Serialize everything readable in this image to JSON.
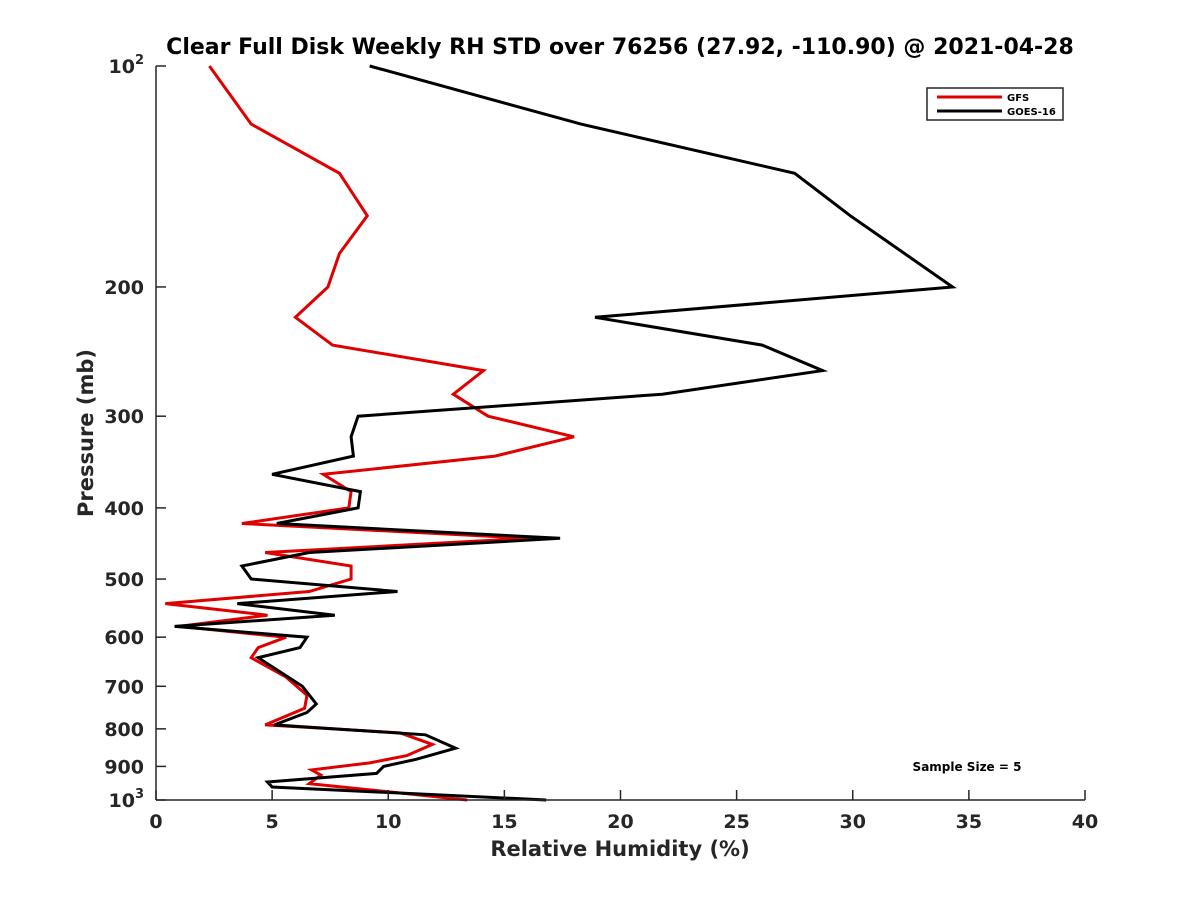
{
  "chart_data": {
    "type": "line",
    "title": "Clear Full Disk Weekly RH STD over 76256 (27.92, -110.90) @ 2021-04-28",
    "xlabel": "Relative Humidity (%)",
    "ylabel": "Pressure (mb)",
    "xlim": [
      0,
      40
    ],
    "ylim": [
      100,
      1000
    ],
    "yscale": "log",
    "y_reversed": true,
    "grid": false,
    "x_ticks": [
      0,
      5,
      10,
      15,
      20,
      25,
      30,
      35,
      40
    ],
    "x_tick_labels": [
      "0",
      "5",
      "10",
      "15",
      "20",
      "25",
      "30",
      "35",
      "40"
    ],
    "y_ticks": [
      100,
      200,
      300,
      400,
      500,
      600,
      700,
      800,
      900,
      1000
    ],
    "y_tick_labels": [
      {
        "base": "10",
        "exp": "2"
      },
      "200",
      "300",
      "400",
      "500",
      "600",
      "700",
      "800",
      "900",
      {
        "base": "10",
        "exp": "3"
      }
    ],
    "legend": {
      "placement": "top-right",
      "entries": [
        "GFS",
        "GOES-16"
      ]
    },
    "annotation": "Sample Size = 5",
    "series": [
      {
        "name": "GFS",
        "color": "#e00000",
        "points": [
          [
            2.3,
            100
          ],
          [
            4.1,
            120
          ],
          [
            7.9,
            140
          ],
          [
            9.1,
            160
          ],
          [
            7.9,
            180
          ],
          [
            7.4,
            200
          ],
          [
            6.0,
            220
          ],
          [
            7.6,
            240
          ],
          [
            14.1,
            260
          ],
          [
            12.8,
            280
          ],
          [
            14.3,
            300
          ],
          [
            18.0,
            320
          ],
          [
            14.6,
            340
          ],
          [
            7.2,
            360
          ],
          [
            8.4,
            380
          ],
          [
            8.3,
            400
          ],
          [
            3.7,
            420
          ],
          [
            16.1,
            440
          ],
          [
            4.7,
            460
          ],
          [
            8.4,
            480
          ],
          [
            8.4,
            500
          ],
          [
            6.6,
            520
          ],
          [
            0.4,
            540
          ],
          [
            4.8,
            560
          ],
          [
            1.0,
            580
          ],
          [
            5.6,
            600
          ],
          [
            4.4,
            620
          ],
          [
            4.1,
            640
          ],
          [
            5.6,
            680
          ],
          [
            6.5,
            720
          ],
          [
            6.4,
            750
          ],
          [
            4.7,
            790
          ],
          [
            10.5,
            810
          ],
          [
            11.9,
            840
          ],
          [
            10.8,
            870
          ],
          [
            9.2,
            890
          ],
          [
            6.7,
            910
          ],
          [
            7.1,
            925
          ],
          [
            6.6,
            950
          ],
          [
            13.4,
            1000
          ]
        ]
      },
      {
        "name": "GOES-16",
        "color": "#000000",
        "points": [
          [
            9.2,
            100
          ],
          [
            18.3,
            120
          ],
          [
            27.5,
            140
          ],
          [
            29.9,
            160
          ],
          [
            34.3,
            200
          ],
          [
            18.9,
            220
          ],
          [
            26.1,
            240
          ],
          [
            28.7,
            260
          ],
          [
            21.8,
            280
          ],
          [
            8.7,
            300
          ],
          [
            8.4,
            320
          ],
          [
            8.5,
            340
          ],
          [
            5.0,
            360
          ],
          [
            8.8,
            380
          ],
          [
            8.7,
            400
          ],
          [
            5.2,
            420
          ],
          [
            17.4,
            440
          ],
          [
            6.6,
            460
          ],
          [
            3.7,
            480
          ],
          [
            4.1,
            500
          ],
          [
            10.4,
            520
          ],
          [
            3.5,
            540
          ],
          [
            7.7,
            560
          ],
          [
            0.8,
            580
          ],
          [
            6.5,
            600
          ],
          [
            6.2,
            620
          ],
          [
            4.4,
            640
          ],
          [
            6.3,
            700
          ],
          [
            6.9,
            740
          ],
          [
            6.5,
            760
          ],
          [
            5.1,
            790
          ],
          [
            11.6,
            815
          ],
          [
            12.9,
            850
          ],
          [
            11.2,
            880
          ],
          [
            9.8,
            900
          ],
          [
            9.5,
            920
          ],
          [
            4.8,
            945
          ],
          [
            5.0,
            960
          ],
          [
            16.8,
            1000
          ]
        ]
      }
    ]
  }
}
